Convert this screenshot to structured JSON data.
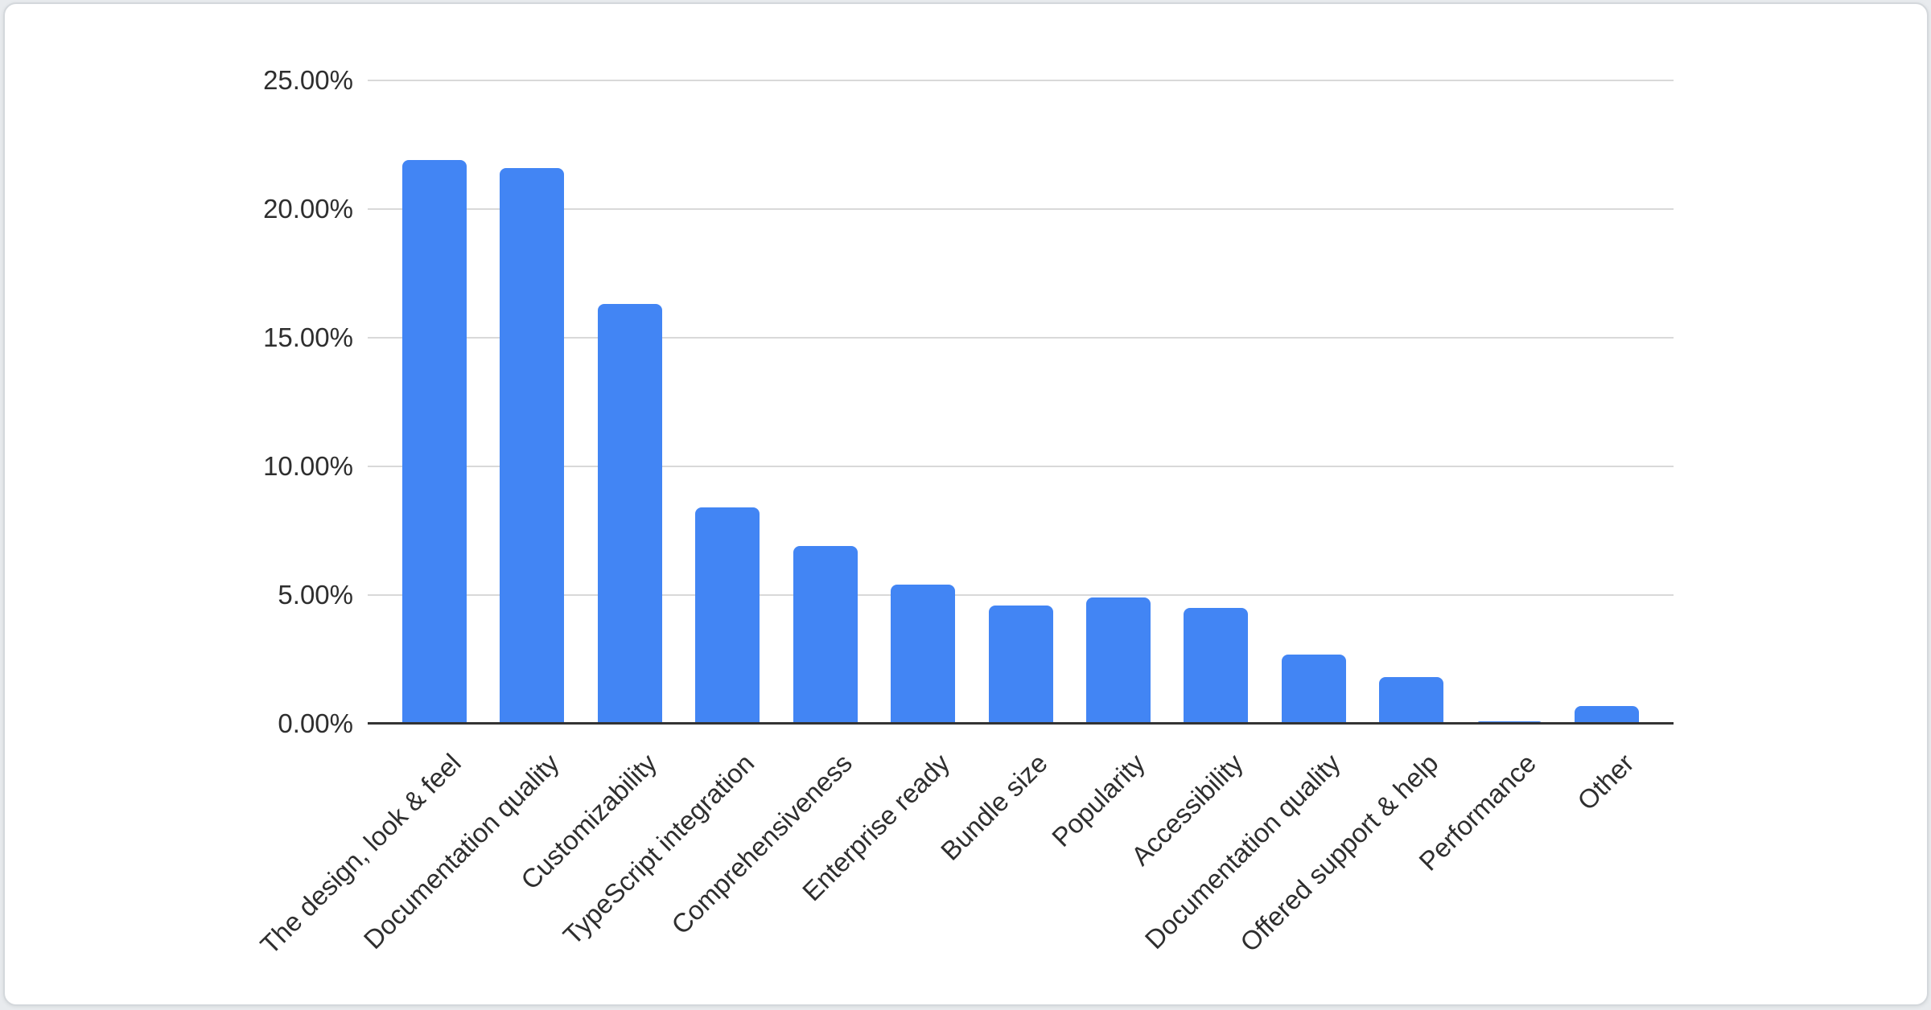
{
  "page": {
    "background_color": "#e8ebee"
  },
  "card": {
    "background_color": "#ffffff",
    "border_color": "#d4d8dc"
  },
  "chart_data": {
    "type": "bar",
    "title": "",
    "xlabel": "",
    "ylabel": "",
    "legend_position": "none",
    "grid": true,
    "ylim": [
      0,
      25
    ],
    "y_tick_format": "percent",
    "y_ticks": [
      {
        "label": "25.00%",
        "value": 25
      },
      {
        "label": "20.00%",
        "value": 20
      },
      {
        "label": "15.00%",
        "value": 15
      },
      {
        "label": "10.00%",
        "value": 10
      },
      {
        "label": "5.00%",
        "value": 5
      },
      {
        "label": "0.00%",
        "value": 0
      }
    ],
    "categories": [
      "The design, look & feel",
      "Documentation quality",
      "Customizability",
      "TypeScript integration",
      "Comprehensiveness",
      "Enterprise ready",
      "Bundle size",
      "Popularity",
      "Accessibility",
      "Documentation quality",
      "Offered support & help",
      "Performance",
      "Other"
    ],
    "values": [
      21.9,
      21.6,
      16.3,
      8.4,
      6.9,
      5.4,
      4.6,
      4.9,
      4.5,
      2.7,
      1.8,
      0.1,
      0.7
    ],
    "values_unit": "%",
    "series_color": "#4285f4",
    "gridline_color": "#d9d9d9",
    "axis_line_color": "#333333",
    "tick_label_color": "#2e2e2e"
  }
}
